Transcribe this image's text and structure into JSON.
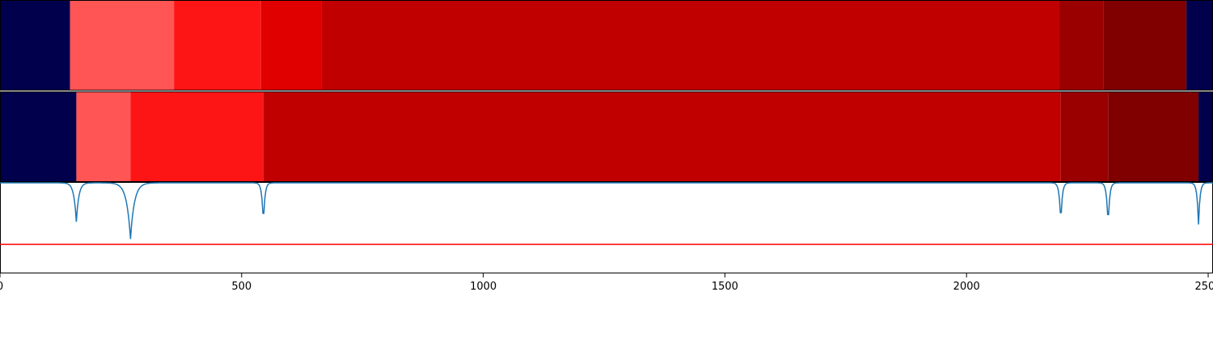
{
  "chart_data": [
    {
      "type": "segment-bar",
      "name": "segmentation-top",
      "xlim": [
        0,
        2510
      ],
      "segments": [
        {
          "start": 0,
          "end": 145,
          "color": "#00004c"
        },
        {
          "start": 145,
          "end": 360,
          "color": "#ff5555"
        },
        {
          "start": 360,
          "end": 540,
          "color": "#fd1515"
        },
        {
          "start": 540,
          "end": 665,
          "color": "#e10000"
        },
        {
          "start": 665,
          "end": 2192,
          "color": "#c00000"
        },
        {
          "start": 2192,
          "end": 2283,
          "color": "#9b0000"
        },
        {
          "start": 2283,
          "end": 2455,
          "color": "#800000"
        },
        {
          "start": 2455,
          "end": 2510,
          "color": "#00004c"
        }
      ]
    },
    {
      "type": "segment-bar",
      "name": "segmentation-bottom",
      "xlim": [
        0,
        2510
      ],
      "segments": [
        {
          "start": 0,
          "end": 158,
          "color": "#00004c"
        },
        {
          "start": 158,
          "end": 270,
          "color": "#ff5555"
        },
        {
          "start": 270,
          "end": 545,
          "color": "#fd1515"
        },
        {
          "start": 545,
          "end": 2195,
          "color": "#c00000"
        },
        {
          "start": 2195,
          "end": 2293,
          "color": "#9b0000"
        },
        {
          "start": 2293,
          "end": 2480,
          "color": "#800000"
        },
        {
          "start": 2480,
          "end": 2510,
          "color": "#00004c"
        }
      ]
    },
    {
      "type": "line",
      "name": "signal-trace",
      "xlim": [
        0,
        2510
      ],
      "ylim": [
        0,
        1
      ],
      "threshold": 0.32,
      "threshold_color": "#ff0000",
      "line_color": "#1f77b4",
      "baseline": 1.0,
      "dips": [
        {
          "x": 158,
          "depth": 0.43,
          "width": 5
        },
        {
          "x": 270,
          "depth": 0.62,
          "width": 8
        },
        {
          "x": 545,
          "depth": 0.47,
          "width": 3
        },
        {
          "x": 2195,
          "depth": 0.46,
          "width": 3
        },
        {
          "x": 2293,
          "depth": 0.49,
          "width": 3
        },
        {
          "x": 2480,
          "depth": 0.46,
          "width": 3
        }
      ],
      "xticks": [
        0,
        500,
        1000,
        1500,
        2000,
        2500
      ],
      "xticklabels": [
        "0",
        "500",
        "1000",
        "1500",
        "2000",
        "2500"
      ]
    }
  ]
}
